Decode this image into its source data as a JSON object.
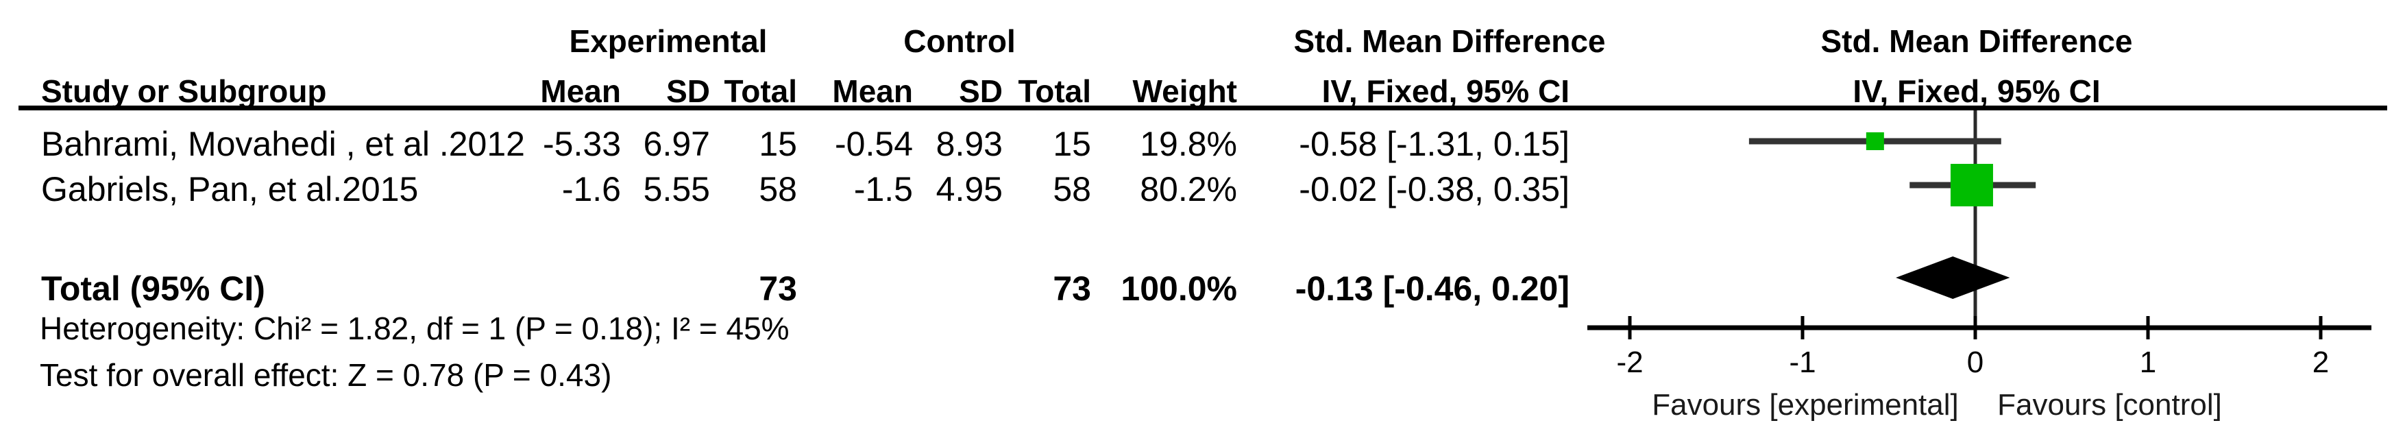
{
  "table": {
    "group_headers": {
      "experimental": "Experimental",
      "control": "Control",
      "smd_left": "Std. Mean Difference"
    },
    "plot_header": {
      "line1": "Std. Mean Difference",
      "line2": "IV, Fixed, 95% CI"
    },
    "columns": {
      "study": "Study or Subgroup",
      "mean": "Mean",
      "sd": "SD",
      "total": "Total",
      "weight": "Weight",
      "ci": "IV, Fixed, 95% CI"
    },
    "rows": [
      {
        "study": "Bahrami, Movahedi , et al .2012",
        "exp_mean": "-5.33",
        "exp_sd": "6.97",
        "exp_total": "15",
        "ctrl_mean": "-0.54",
        "ctrl_sd": "8.93",
        "ctrl_total": "15",
        "weight": "19.8%",
        "ci_text": "-0.58 [-1.31, 0.15]"
      },
      {
        "study": "Gabriels, Pan, et al.2015",
        "exp_mean": "-1.6",
        "exp_sd": "5.55",
        "exp_total": "58",
        "ctrl_mean": "-1.5",
        "ctrl_sd": "4.95",
        "ctrl_total": "58",
        "weight": "80.2%",
        "ci_text": "-0.02 [-0.38, 0.35]"
      }
    ],
    "total_row": {
      "label": "Total (95% CI)",
      "exp_total": "73",
      "ctrl_total": "73",
      "weight": "100.0%",
      "ci_text": "-0.13 [-0.46, 0.20]"
    },
    "footnotes": {
      "heterogeneity": "Heterogeneity: Chi² = 1.82, df = 1 (P = 0.18); I² = 45%",
      "overall_effect": "Test for overall effect: Z = 0.78 (P = 0.43)"
    }
  },
  "chart_data": {
    "type": "forest",
    "title": "Std. Mean Difference",
    "method_label": "IV, Fixed, 95% CI",
    "x_axis": {
      "min": -2,
      "max": 2,
      "ticks": [
        -2,
        -1,
        0,
        1,
        2
      ],
      "tick_labels": [
        "-2",
        "-1",
        "0",
        "1",
        "2"
      ],
      "favours_left": "Favours [experimental]",
      "favours_right": "Favours [control]"
    },
    "studies": [
      {
        "name": "Bahrami, Movahedi , et al .2012",
        "smd": -0.58,
        "ci_low": -1.31,
        "ci_high": 0.15,
        "weight_pct": 19.8
      },
      {
        "name": "Gabriels, Pan, et al.2015",
        "smd": -0.02,
        "ci_low": -0.38,
        "ci_high": 0.35,
        "weight_pct": 80.2
      }
    ],
    "total": {
      "label": "Total (95% CI)",
      "smd": -0.13,
      "ci_low": -0.46,
      "ci_high": 0.2
    },
    "colors": {
      "square": "#00bd00",
      "ci_line": "#333333",
      "diamond": "#000000",
      "axis": "#000000",
      "zero_line": "#2a2a2a"
    }
  }
}
